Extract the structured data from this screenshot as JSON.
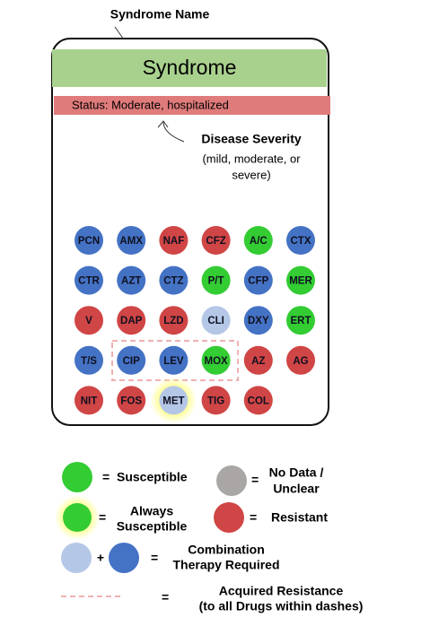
{
  "header": {
    "title": "Syndrome Name"
  },
  "card": {
    "syndrome": "Syndrome",
    "status": "Status: Moderate, hospitalized"
  },
  "severity": {
    "title": "Disease Severity",
    "lines": [
      "(mild, moderate, or",
      "severe)"
    ]
  },
  "drugs": {
    "rows": [
      [
        {
          "label": "PCN",
          "color": "#4472c4"
        },
        {
          "label": "AMX",
          "color": "#4472c4"
        },
        {
          "label": "NAF",
          "color": "#d04545"
        },
        {
          "label": "CFZ",
          "color": "#d04545"
        },
        {
          "label": "A/C",
          "color": "#33cc33"
        },
        {
          "label": "CTX",
          "color": "#4472c4"
        }
      ],
      [
        {
          "label": "CTR",
          "color": "#4472c4"
        },
        {
          "label": "AZT",
          "color": "#4472c4"
        },
        {
          "label": "CTZ",
          "color": "#4472c4"
        },
        {
          "label": "P/T",
          "color": "#33cc33"
        },
        {
          "label": "CFP",
          "color": "#4472c4"
        },
        {
          "label": "MER",
          "color": "#33cc33"
        }
      ],
      [
        {
          "label": "V",
          "color": "#d04545"
        },
        {
          "label": "DAP",
          "color": "#d04545"
        },
        {
          "label": "LZD",
          "color": "#d04545"
        },
        {
          "label": "CLI",
          "color": "#b4c7e7"
        },
        {
          "label": "DXY",
          "color": "#4472c4"
        },
        {
          "label": "ERT",
          "color": "#33cc33"
        }
      ],
      [
        {
          "label": "T/S",
          "color": "#4472c4"
        },
        {
          "label": "CIP",
          "color": "#4472c4"
        },
        {
          "label": "LEV",
          "color": "#4472c4"
        },
        {
          "label": "MOX",
          "color": "#33cc33"
        },
        {
          "label": "AZ",
          "color": "#d04545"
        },
        {
          "label": "AG",
          "color": "#d04545"
        }
      ],
      [
        {
          "label": "NIT",
          "color": "#d04545"
        },
        {
          "label": "FOS",
          "color": "#d04545"
        },
        {
          "label": "MET",
          "color": "#b4c7e7",
          "glow": true
        },
        {
          "label": "TIG",
          "color": "#d04545"
        },
        {
          "label": "COL",
          "color": "#d04545"
        }
      ]
    ]
  },
  "legend": {
    "equals": "=",
    "plus": "+",
    "susceptible": "Susceptible",
    "no_data": [
      "No Data /",
      "Unclear"
    ],
    "always": [
      "Always",
      "Susceptible"
    ],
    "resistant": "Resistant",
    "combination": [
      "Combination",
      "Therapy Required"
    ],
    "acquired": [
      "Acquired Resistance",
      "(to all Drugs within dashes)"
    ]
  }
}
